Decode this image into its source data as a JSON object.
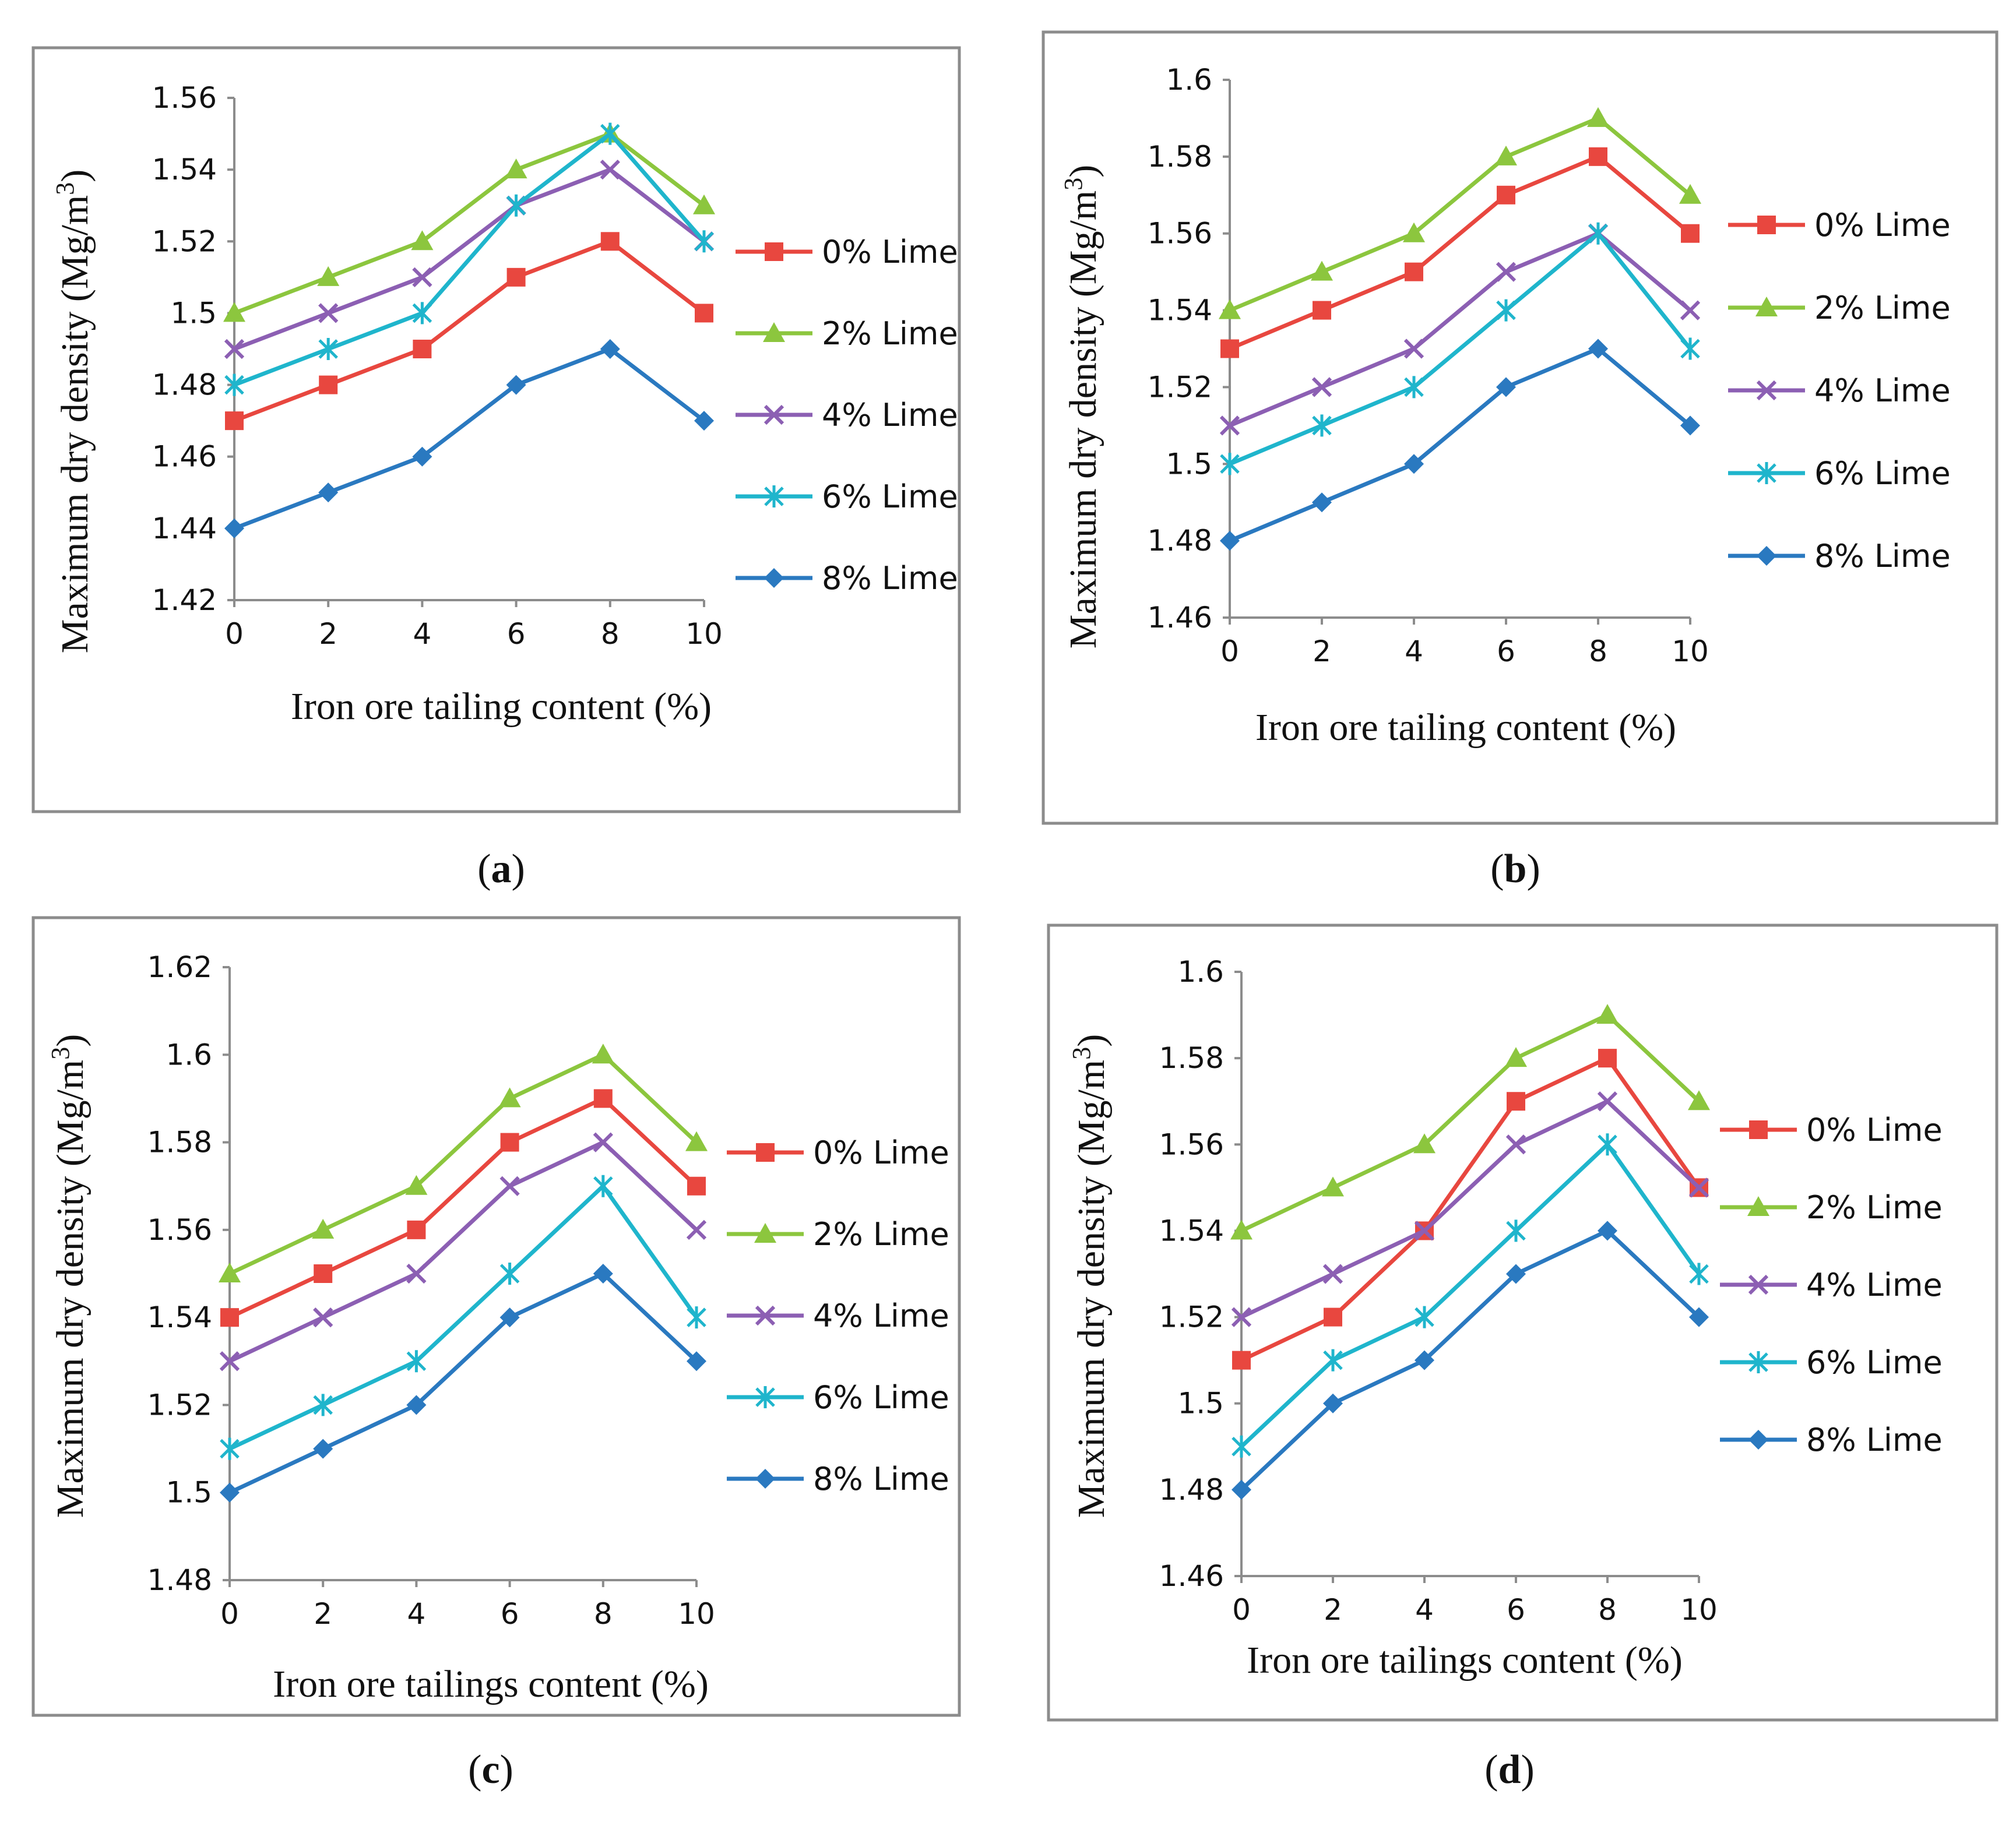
{
  "colors": {
    "0% Lime": "#E8473F",
    "2% Lime": "#8CC63E",
    "4% Lime": "#8C5FB3",
    "6% Lime": "#1FB5CC",
    "8% Lime": "#2A79C0"
  },
  "chart_data": [
    {
      "type": "line",
      "panel_label": "a",
      "xlabel": "Iron ore tailing content (%)",
      "ylabel": "Maximum dry density (Mg/m3)",
      "categories": [
        0,
        2,
        4,
        6,
        8,
        10
      ],
      "ylim": [
        1.42,
        1.56
      ],
      "yticks": [
        "1.42",
        "1.44",
        "1.46",
        "1.48",
        "1.5",
        "1.52",
        "1.54",
        "1.56"
      ],
      "legend_position": "right",
      "series": [
        {
          "name": "0% Lime",
          "marker": "square",
          "values": [
            1.47,
            1.48,
            1.49,
            1.51,
            1.52,
            1.5
          ]
        },
        {
          "name": "2% Lime",
          "marker": "triangle",
          "values": [
            1.5,
            1.51,
            1.52,
            1.54,
            1.55,
            1.53
          ]
        },
        {
          "name": "4% Lime",
          "marker": "x",
          "values": [
            1.49,
            1.5,
            1.51,
            1.53,
            1.54,
            1.52
          ]
        },
        {
          "name": "6% Lime",
          "marker": "star",
          "values": [
            1.48,
            1.49,
            1.5,
            1.53,
            1.55,
            1.52
          ]
        },
        {
          "name": "8% Lime",
          "marker": "diamond",
          "values": [
            1.44,
            1.45,
            1.46,
            1.48,
            1.49,
            1.47
          ]
        }
      ]
    },
    {
      "type": "line",
      "panel_label": "b",
      "xlabel": "Iron ore tailing content (%)",
      "ylabel": "Maximum dry density (Mg/m3)",
      "categories": [
        0,
        2,
        4,
        6,
        8,
        10
      ],
      "ylim": [
        1.46,
        1.6
      ],
      "yticks": [
        "1.46",
        "1.48",
        "1.5",
        "1.52",
        "1.54",
        "1.56",
        "1.58",
        "1.6"
      ],
      "legend_position": "right",
      "series": [
        {
          "name": "0% Lime",
          "marker": "square",
          "values": [
            1.53,
            1.54,
            1.55,
            1.57,
            1.58,
            1.56
          ]
        },
        {
          "name": "2% Lime",
          "marker": "triangle",
          "values": [
            1.54,
            1.55,
            1.56,
            1.58,
            1.59,
            1.57
          ]
        },
        {
          "name": "4% Lime",
          "marker": "x",
          "values": [
            1.51,
            1.52,
            1.53,
            1.55,
            1.56,
            1.54
          ]
        },
        {
          "name": "6% Lime",
          "marker": "star",
          "values": [
            1.5,
            1.51,
            1.52,
            1.54,
            1.56,
            1.53
          ]
        },
        {
          "name": "8% Lime",
          "marker": "diamond",
          "values": [
            1.48,
            1.49,
            1.5,
            1.52,
            1.53,
            1.51
          ]
        }
      ]
    },
    {
      "type": "line",
      "panel_label": "c",
      "xlabel": "Iron ore tailings content (%)",
      "ylabel": "Maximum dry density (Mg/m3)",
      "categories": [
        0,
        2,
        4,
        6,
        8,
        10
      ],
      "ylim": [
        1.48,
        1.62
      ],
      "yticks": [
        "1.48",
        "1.5",
        "1.52",
        "1.54",
        "1.56",
        "1.58",
        "1.6",
        "1.62"
      ],
      "legend_position": "right",
      "series": [
        {
          "name": "0% Lime",
          "marker": "square",
          "values": [
            1.54,
            1.55,
            1.56,
            1.58,
            1.59,
            1.57
          ]
        },
        {
          "name": "2% Lime",
          "marker": "triangle",
          "values": [
            1.55,
            1.56,
            1.57,
            1.59,
            1.6,
            1.58
          ]
        },
        {
          "name": "4% Lime",
          "marker": "x",
          "values": [
            1.53,
            1.54,
            1.55,
            1.57,
            1.58,
            1.56
          ]
        },
        {
          "name": "6% Lime",
          "marker": "star",
          "values": [
            1.51,
            1.52,
            1.53,
            1.55,
            1.57,
            1.54
          ]
        },
        {
          "name": "8% Lime",
          "marker": "diamond",
          "values": [
            1.5,
            1.51,
            1.52,
            1.54,
            1.55,
            1.53
          ]
        }
      ]
    },
    {
      "type": "line",
      "panel_label": "d",
      "xlabel": "Iron ore tailings content (%)",
      "ylabel": "Maximum dry density (Mg/m3)",
      "categories": [
        0,
        2,
        4,
        6,
        8,
        10
      ],
      "ylim": [
        1.46,
        1.6
      ],
      "yticks": [
        "1.46",
        "1.48",
        "1.5",
        "1.52",
        "1.54",
        "1.56",
        "1.58",
        "1.6"
      ],
      "legend_position": "right",
      "series": [
        {
          "name": "0% Lime",
          "marker": "square",
          "values": [
            1.51,
            1.52,
            1.54,
            1.57,
            1.58,
            1.55
          ]
        },
        {
          "name": "2% Lime",
          "marker": "triangle",
          "values": [
            1.54,
            1.55,
            1.56,
            1.58,
            1.59,
            1.57
          ]
        },
        {
          "name": "4% Lime",
          "marker": "x",
          "values": [
            1.52,
            1.53,
            1.54,
            1.56,
            1.57,
            1.55
          ]
        },
        {
          "name": "6% Lime",
          "marker": "star",
          "values": [
            1.49,
            1.51,
            1.52,
            1.54,
            1.56,
            1.53
          ]
        },
        {
          "name": "8% Lime",
          "marker": "diamond",
          "values": [
            1.48,
            1.5,
            1.51,
            1.53,
            1.54,
            1.52
          ]
        }
      ]
    }
  ]
}
